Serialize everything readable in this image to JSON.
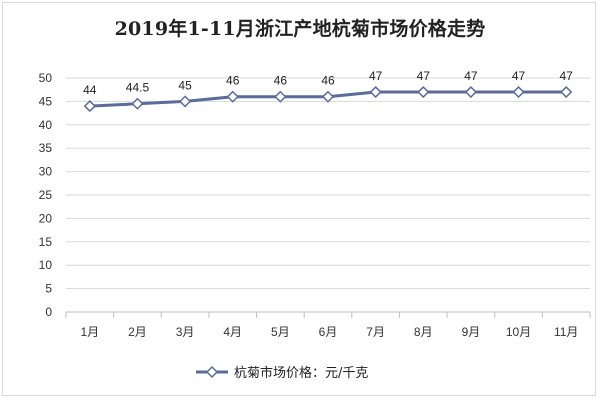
{
  "chart_data": {
    "type": "line",
    "title": "2019年1-11月浙江产地杭菊市场价格走势",
    "categories": [
      "1月",
      "2月",
      "3月",
      "4月",
      "5月",
      "6月",
      "7月",
      "8月",
      "9月",
      "10月",
      "11月"
    ],
    "series": [
      {
        "name": "杭菊市场价格：元/千克",
        "values": [
          44,
          44.5,
          45,
          46,
          46,
          46,
          47,
          47,
          47,
          47,
          47
        ],
        "data_labels": [
          "44",
          "44.5",
          "45",
          "46",
          "46",
          "46",
          "47",
          "47",
          "47",
          "47",
          "47"
        ],
        "color": "#5b6b9a",
        "marker": "diamond-hollow"
      }
    ],
    "yticks": [
      0,
      5,
      10,
      15,
      20,
      25,
      30,
      35,
      40,
      45,
      50
    ],
    "ylim": [
      0,
      50
    ],
    "grid": true,
    "legend_position": "bottom"
  }
}
